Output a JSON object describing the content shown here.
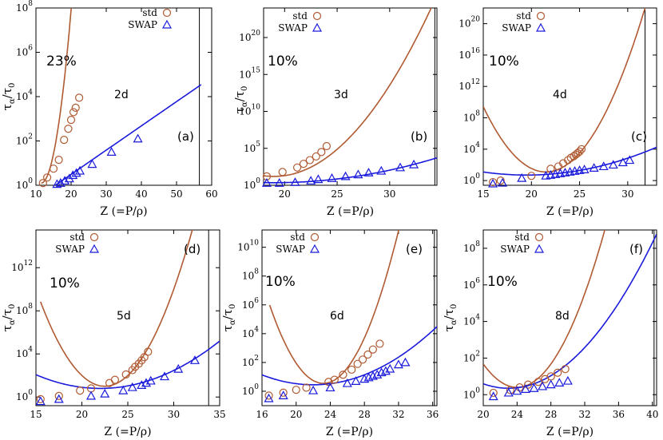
{
  "figure": {
    "std_color": "#b05a32",
    "swap_color": "#1a1adc",
    "legend_std": "std",
    "legend_swap": "SWAP"
  },
  "chart_data": [
    {
      "type": "scatter",
      "panel": "(a)",
      "dimension": "2d",
      "percent": "23%",
      "xlabel": "Z (=P/ρ)",
      "ylabel": "τα/τ0",
      "xlim": [
        10,
        60
      ],
      "ylim_log10": [
        0,
        8
      ],
      "xticks": [
        10,
        20,
        30,
        40,
        50,
        60
      ],
      "yticks_exp": [
        0,
        2,
        4,
        6,
        8
      ],
      "vline": 56.5,
      "series": [
        {
          "name": "std",
          "marker": "circle",
          "x": [
            12.0,
            13.2,
            15.0,
            16.5,
            18.0,
            19.2,
            20.0,
            20.7,
            21.3,
            22.3
          ],
          "log10_y": [
            0.1,
            0.35,
            0.75,
            1.15,
            2.05,
            2.55,
            2.95,
            3.3,
            3.5,
            3.95
          ]
        },
        {
          "name": "SWAP",
          "marker": "triangle",
          "x": [
            16.0,
            17.0,
            18.2,
            19.5,
            20.5,
            21.5,
            22.5,
            26.0,
            31.5,
            39.0
          ],
          "log10_y": [
            0.05,
            0.1,
            0.2,
            0.3,
            0.45,
            0.55,
            0.65,
            0.95,
            1.5,
            2.1
          ]
        }
      ],
      "fits": [
        {
          "name": "std",
          "kind": "quadratic",
          "a": 0.108,
          "z0": 11.5,
          "c": 0.1,
          "xrange": [
            11.5,
            24.0
          ]
        },
        {
          "name": "SWAP",
          "kind": "linear",
          "m": 0.1095,
          "b": -1.7,
          "xrange": [
            15.6,
            57.0
          ]
        }
      ]
    },
    {
      "type": "scatter",
      "panel": "(b)",
      "dimension": "3d",
      "percent": "10%",
      "xlabel": "Z (=P/ρ)",
      "ylabel": "τα/τ0",
      "xlim": [
        18,
        34.5
      ],
      "ylim_log10": [
        0,
        24
      ],
      "xticks": [
        20,
        25,
        30
      ],
      "yticks_exp": [
        0,
        5,
        10,
        15,
        20
      ],
      "vline": 34.3,
      "series": [
        {
          "name": "std",
          "marker": "circle",
          "x": [
            18.3,
            19.8,
            21.2,
            21.8,
            22.4,
            23.0,
            23.5,
            24.0
          ],
          "log10_y": [
            1.2,
            1.8,
            2.4,
            2.9,
            3.4,
            3.9,
            4.5,
            5.3
          ]
        },
        {
          "name": "SWAP",
          "marker": "triangle",
          "x": [
            18.3,
            19.5,
            21.0,
            22.5,
            23.2,
            24.5,
            25.8,
            27.0,
            28.0,
            29.2,
            31.0,
            32.3
          ],
          "log10_y": [
            0.3,
            0.3,
            0.4,
            0.6,
            0.8,
            0.95,
            1.2,
            1.45,
            1.7,
            1.95,
            2.4,
            2.8
          ]
        }
      ],
      "fits": [
        {
          "name": "std",
          "kind": "quadratic",
          "a": 0.102,
          "z0": 19.0,
          "c": 1.2,
          "xrange": [
            18.0,
            34.6
          ]
        },
        {
          "name": "SWAP",
          "kind": "quadratic",
          "a": 0.014,
          "z0": 19.0,
          "c": 0.35,
          "xrange": [
            18.0,
            34.6
          ]
        }
      ]
    },
    {
      "type": "scatter",
      "panel": "(c)",
      "dimension": "4d",
      "percent": "10%",
      "xlabel": "Z (=P/ρ)",
      "ylabel": "",
      "xlim": [
        15,
        33
      ],
      "ylim_log10": [
        -0.6,
        22
      ],
      "xticks": [
        15,
        20,
        25,
        30
      ],
      "yticks_exp": [
        0,
        4,
        8,
        12,
        16,
        20
      ],
      "vline": 31.8,
      "series": [
        {
          "name": "std",
          "marker": "circle",
          "x": [
            16.0,
            16.8,
            20.0,
            22.0,
            22.8,
            23.3,
            23.8,
            24.1,
            24.4,
            24.6,
            24.8,
            25.0,
            25.2
          ],
          "log10_y": [
            -0.2,
            0.0,
            0.6,
            1.5,
            1.8,
            2.2,
            2.6,
            2.9,
            3.1,
            3.3,
            3.5,
            3.7,
            4.0
          ]
        },
        {
          "name": "SWAP",
          "marker": "triangle",
          "x": [
            16.0,
            17.0,
            19.0,
            21.5,
            22.0,
            22.5,
            23.0,
            23.5,
            24.0,
            24.5,
            25.0,
            25.5,
            26.5,
            27.5,
            28.5,
            29.5,
            30.2
          ],
          "log10_y": [
            -0.4,
            -0.3,
            0.3,
            0.6,
            0.7,
            0.8,
            0.9,
            1.0,
            1.1,
            1.2,
            1.3,
            1.4,
            1.6,
            1.8,
            2.0,
            2.3,
            2.6
          ]
        }
      ],
      "fits": [
        {
          "name": "std",
          "kind": "quadratic",
          "a": 0.197,
          "z0": 21.5,
          "c": 1.1,
          "xrange": [
            15.0,
            33.2
          ]
        },
        {
          "name": "SWAP",
          "kind": "quadratic",
          "a": 0.0195,
          "z0": 19.5,
          "c": 0.7,
          "xrange": [
            15.0,
            33.2
          ]
        }
      ]
    },
    {
      "type": "scatter",
      "panel": "(d)",
      "dimension": "5d",
      "percent": "10%",
      "xlabel": "Z (=P/ρ)",
      "ylabel": "τα/τ0",
      "xlim": [
        15,
        35
      ],
      "ylim_log10": [
        -0.8,
        15.5
      ],
      "xticks": [
        15,
        20,
        25,
        30,
        35
      ],
      "yticks_exp": [
        0,
        4,
        8,
        12
      ],
      "vline": 33.8,
      "series": [
        {
          "name": "std",
          "marker": "circle",
          "x": [
            15.5,
            17.5,
            19.8,
            21.0,
            23.0,
            23.6,
            24.8,
            25.5,
            25.8,
            26.2,
            26.5,
            26.8,
            27.2
          ],
          "log10_y": [
            -0.2,
            0.1,
            0.6,
            0.8,
            1.3,
            1.6,
            2.1,
            2.5,
            2.8,
            3.1,
            3.4,
            3.7,
            4.2
          ]
        },
        {
          "name": "SWAP",
          "marker": "triangle",
          "x": [
            15.5,
            17.5,
            21.0,
            22.5,
            24.5,
            25.5,
            26.5,
            27.0,
            27.5,
            29.0,
            30.5,
            32.3
          ],
          "log10_y": [
            -0.4,
            -0.2,
            0.1,
            0.3,
            0.6,
            0.9,
            1.1,
            1.3,
            1.5,
            1.9,
            2.6,
            3.4
          ]
        }
      ],
      "fits": [
        {
          "name": "std",
          "kind": "quadratic",
          "a": 0.16,
          "z0": 22.5,
          "c": 1.0,
          "xrange": [
            15.5,
            34.6
          ]
        },
        {
          "name": "SWAP",
          "kind": "quadratic",
          "a": 0.026,
          "z0": 22.0,
          "c": 0.8,
          "xrange": [
            15.0,
            35.0
          ]
        }
      ]
    },
    {
      "type": "scatter",
      "panel": "(e)",
      "dimension": "6d",
      "percent": "10%",
      "xlabel": "Z (=P/ρ)",
      "ylabel": "τα/τ0",
      "xlim": [
        16,
        36.5
      ],
      "ylim_log10": [
        -1,
        11.2
      ],
      "xticks": [
        16,
        20,
        24,
        28,
        32,
        36
      ],
      "yticks_exp": [
        0,
        2,
        4,
        6,
        8,
        10
      ],
      "vline": 36.2,
      "series": [
        {
          "name": "std",
          "marker": "circle",
          "x": [
            16.8,
            18.5,
            20.0,
            21.2,
            23.8,
            24.5,
            25.5,
            26.5,
            27.2,
            27.8,
            28.4,
            29.0,
            29.8
          ],
          "log10_y": [
            -0.3,
            -0.1,
            0.1,
            0.25,
            0.65,
            0.8,
            1.15,
            1.5,
            1.9,
            2.2,
            2.55,
            2.9,
            3.3
          ]
        },
        {
          "name": "SWAP",
          "marker": "triangle",
          "x": [
            16.8,
            18.5,
            22.0,
            24.0,
            26.0,
            27.0,
            28.0,
            28.5,
            29.0,
            29.5,
            30.0,
            30.5,
            31.0,
            32.0,
            32.8
          ],
          "log10_y": [
            -0.5,
            -0.3,
            0.05,
            0.25,
            0.55,
            0.7,
            0.85,
            0.95,
            1.05,
            1.15,
            1.3,
            1.4,
            1.55,
            1.85,
            2.0
          ]
        }
      ],
      "fits": [
        {
          "name": "std",
          "kind": "quadratic",
          "a": 0.137,
          "z0": 23.2,
          "c": 0.55,
          "xrange": [
            16.9,
            36.6
          ]
        },
        {
          "name": "SWAP",
          "kind": "quadratic",
          "a": 0.0192,
          "z0": 22.0,
          "c": 0.45,
          "xrange": [
            16.0,
            36.6
          ]
        }
      ]
    },
    {
      "type": "scatter",
      "panel": "(f)",
      "dimension": "8d",
      "percent": "10%",
      "xlabel": "Z (=P/ρ)",
      "ylabel": "τα/τ0",
      "xlim": [
        20,
        40.5
      ],
      "ylim_log10": [
        -0.6,
        9
      ],
      "xticks": [
        20,
        24,
        28,
        32,
        36,
        40
      ],
      "yticks_exp": [
        0,
        2,
        4,
        6,
        8
      ],
      "vline": 40.2,
      "series": [
        {
          "name": "std",
          "marker": "circle",
          "x": [
            21.2,
            23.2,
            24.3,
            25.3,
            26.5,
            27.3,
            28.0,
            28.8,
            29.7
          ],
          "log10_y": [
            0.1,
            0.25,
            0.4,
            0.55,
            0.7,
            0.85,
            1.0,
            1.2,
            1.4
          ]
        },
        {
          "name": "SWAP",
          "marker": "triangle",
          "x": [
            21.2,
            23.0,
            24.0,
            25.0,
            26.0,
            27.0,
            28.0,
            29.0,
            30.0
          ],
          "log10_y": [
            -0.1,
            0.1,
            0.2,
            0.3,
            0.35,
            0.45,
            0.55,
            0.65,
            0.75
          ]
        }
      ],
      "fits": [
        {
          "name": "std",
          "kind": "quadratic",
          "a": 0.08,
          "z0": 24.0,
          "c": 0.4,
          "xrange": [
            20.0,
            40.5
          ]
        },
        {
          "name": "SWAP",
          "kind": "quadratic",
          "a": 0.0275,
          "z0": 23.0,
          "c": 0.35,
          "xrange": [
            20.0,
            40.5
          ]
        }
      ]
    }
  ]
}
